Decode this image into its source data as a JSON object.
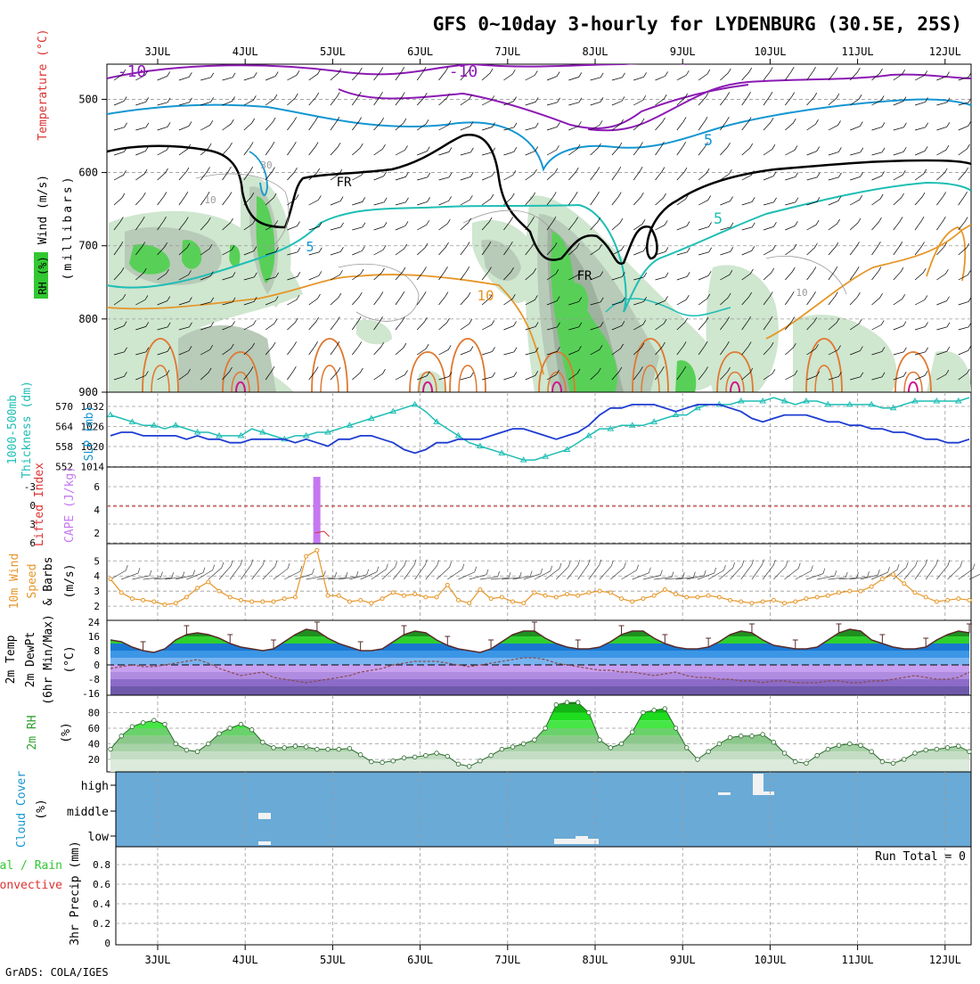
{
  "title": "GFS 0~10day 3-hourly for LYDENBURG (30.5E, 25S)",
  "credit": "GrADS: COLA/IGES",
  "dates": [
    "3JUL",
    "4JUL",
    "5JUL",
    "6JUL",
    "7JUL",
    "8JUL",
    "9JUL",
    "10JUL",
    "11JUL",
    "12JUL"
  ],
  "colors": {
    "purple": "#8c1ab4",
    "blue": "#1496d2",
    "cyan": "#1ebeb4",
    "orange": "#e69628",
    "red": "#dc3232",
    "green": "#32c832",
    "lav": "#c678f0",
    "cloud": "#6aaad6",
    "black": "#000000"
  },
  "chart_data": [
    {
      "id": "upper",
      "type": "contour",
      "ylabels": {
        "wind": "Wind (m/s)",
        "temp": "Temperature (°C)",
        "rh": "RH (%)",
        "mb": "(millibars)"
      },
      "yticks": [
        500,
        600,
        700,
        800,
        900
      ],
      "ylim": [
        450,
        900
      ],
      "contour_labels": [
        "-10",
        "-10",
        "5",
        "5",
        "5",
        "FR",
        "FR",
        "10",
        "10",
        "10",
        "30"
      ]
    },
    {
      "id": "slp",
      "type": "line",
      "ylabels": {
        "thick1": "1000-500mb",
        "thick2": "Thickness (dm)",
        "slp": "SLP (mb)"
      },
      "left_ticks": [
        "570",
        "564",
        "558",
        "552"
      ],
      "right_ticks": [
        "1032",
        "1026",
        "1020",
        "1014"
      ],
      "thickness_dm": [
        566,
        565,
        564,
        563,
        563,
        562,
        563,
        562,
        561,
        561,
        560,
        560,
        560,
        562,
        561,
        560,
        559,
        560,
        560,
        561,
        561,
        562,
        563,
        564,
        565,
        566,
        567,
        568,
        569,
        567,
        564,
        562,
        560,
        558,
        557,
        556,
        555,
        554,
        553,
        553,
        554,
        555,
        556,
        558,
        560,
        562,
        562,
        563,
        563,
        563,
        564,
        565,
        566,
        566,
        568,
        569,
        569,
        569,
        570,
        570,
        570,
        571,
        570,
        569,
        570,
        570,
        569,
        569,
        569,
        569,
        569,
        568,
        568,
        569,
        570,
        570,
        570,
        570,
        570,
        571
      ],
      "slp_mb": [
        1022,
        1023,
        1023,
        1022,
        1022,
        1022,
        1022,
        1021,
        1022,
        1021,
        1021,
        1020,
        1020,
        1021,
        1021,
        1021,
        1021,
        1020,
        1021,
        1020,
        1019,
        1021,
        1021,
        1022,
        1022,
        1021,
        1020,
        1018,
        1017,
        1018,
        1020,
        1020,
        1021,
        1021,
        1021,
        1022,
        1023,
        1024,
        1024,
        1023,
        1022,
        1021,
        1022,
        1023,
        1025,
        1028,
        1030,
        1030,
        1031,
        1031,
        1031,
        1030,
        1029,
        1030,
        1031,
        1031,
        1031,
        1030,
        1029,
        1027,
        1026,
        1027,
        1028,
        1028,
        1028,
        1027,
        1026,
        1026,
        1025,
        1025,
        1024,
        1024,
        1023,
        1023,
        1022,
        1021,
        1021,
        1020,
        1020,
        1021
      ]
    },
    {
      "id": "cape",
      "type": "bar",
      "ylabels": {
        "li": "Lifted Index",
        "cape": "CAPE (J/kg)"
      },
      "left_ticks": [
        "-3",
        "0",
        "3",
        "6"
      ],
      "right_ticks": [
        "6",
        "4",
        "2"
      ],
      "cape_index": 18,
      "cape_value": 7.4
    },
    {
      "id": "wind10m",
      "type": "line",
      "ylabels": {
        "a": "10m Wind",
        "b": "Speed",
        "c": "& Barbs",
        "unit": "(m/s)"
      },
      "yticks": [
        "5",
        "4",
        "3",
        "2"
      ],
      "speed_ms": [
        3.8,
        2.9,
        2.5,
        2.4,
        2.3,
        2.1,
        2.2,
        2.6,
        3.2,
        3.6,
        3.0,
        2.6,
        2.4,
        2.3,
        2.3,
        2.3,
        2.5,
        2.6,
        5.3,
        5.7,
        2.7,
        2.7,
        2.3,
        2.4,
        2.2,
        2.5,
        2.9,
        2.7,
        2.8,
        2.6,
        2.6,
        3.4,
        2.4,
        2.2,
        3.1,
        2.5,
        2.6,
        2.3,
        2.2,
        2.9,
        2.7,
        2.6,
        2.8,
        2.7,
        2.9,
        3.0,
        2.9,
        2.5,
        2.3,
        2.5,
        2.7,
        3.1,
        2.8,
        2.6,
        2.6,
        2.7,
        2.6,
        2.4,
        2.3,
        2.2,
        2.3,
        2.4,
        2.2,
        2.3,
        2.5,
        2.6,
        2.7,
        2.9,
        3.0,
        3.0,
        3.3,
        3.8,
        4.1,
        3.5,
        2.9,
        2.6,
        2.3,
        2.4,
        2.5,
        2.4
      ]
    },
    {
      "id": "temp2m",
      "type": "area",
      "ylabels": {
        "a": "2m Temp",
        "b": "2m DewPt",
        "c": "(6hr Min/Max)",
        "unit": "(°C)"
      },
      "yticks": [
        "24",
        "16",
        "8",
        "0",
        "-8",
        "-16"
      ],
      "temp_c": [
        14,
        13,
        10,
        8,
        7,
        9,
        14,
        17,
        18,
        17,
        15,
        12,
        10,
        9,
        8,
        9,
        13,
        17,
        20,
        19,
        15,
        12,
        10,
        8,
        8,
        9,
        13,
        17,
        19,
        18,
        14,
        11,
        9,
        8,
        7,
        9,
        13,
        17,
        19,
        19,
        15,
        12,
        10,
        9,
        9,
        10,
        13,
        17,
        19,
        19,
        15,
        12,
        10,
        9,
        9,
        10,
        13,
        17,
        19,
        18,
        14,
        11,
        10,
        9,
        9,
        10,
        14,
        18,
        20,
        19,
        14,
        12,
        10,
        9,
        9,
        10,
        14,
        17,
        19,
        18
      ],
      "dewpt_c": [
        -2,
        -1,
        0,
        -1,
        -1,
        0,
        1,
        2,
        3,
        1,
        -2,
        -4,
        -6,
        -5,
        -4,
        -7,
        -8,
        -9,
        -10,
        -9,
        -8,
        -7,
        -6,
        -4,
        -3,
        -2,
        0,
        1,
        2,
        2,
        2,
        1,
        0,
        -1,
        0,
        1,
        2,
        3,
        4,
        4,
        3,
        1,
        0,
        -1,
        -2,
        -3,
        -3,
        -4,
        -4,
        -5,
        -6,
        -5,
        -4,
        -6,
        -7,
        -7,
        -8,
        -8,
        -9,
        -9,
        -10,
        -9,
        -9,
        -10,
        -10,
        -10,
        -9,
        -9,
        -10,
        -10,
        -9,
        -9,
        -8,
        -7,
        -6,
        -7,
        -8,
        -8,
        -7,
        -4
      ]
    },
    {
      "id": "rh2m",
      "type": "area",
      "ylabels": {
        "a": "2m RH",
        "unit": "(%)"
      },
      "yticks": [
        "80",
        "60",
        "40",
        "20"
      ],
      "rh_pct": [
        33,
        50,
        62,
        67,
        70,
        65,
        40,
        32,
        30,
        40,
        53,
        60,
        65,
        58,
        42,
        35,
        35,
        37,
        36,
        33,
        33,
        33,
        34,
        26,
        17,
        16,
        18,
        22,
        23,
        25,
        28,
        24,
        14,
        11,
        18,
        25,
        33,
        36,
        40,
        45,
        60,
        90,
        93,
        93,
        80,
        45,
        35,
        40,
        55,
        80,
        83,
        85,
        60,
        35,
        20,
        30,
        40,
        48,
        50,
        50,
        52,
        42,
        28,
        17,
        15,
        25,
        33,
        38,
        40,
        38,
        30,
        17,
        15,
        20,
        28,
        32,
        33,
        35,
        37,
        30
      ]
    },
    {
      "id": "cloud",
      "type": "bar",
      "ylabels": {
        "a": "Cloud Cover",
        "unit": "(%)"
      },
      "levels": [
        "high",
        "middle",
        "low"
      ]
    },
    {
      "id": "precip",
      "type": "bar",
      "ylabels": {
        "a": "Total / Rain",
        "b": "Convective",
        "c": "3hr Precip (mm)"
      },
      "yticks": [
        "0.8",
        "0.6",
        "0.4",
        "0.2",
        "0"
      ],
      "run_total": "Run Total = 0",
      "values_mm": [
        0,
        0,
        0,
        0,
        0,
        0,
        0,
        0,
        0,
        0
      ]
    }
  ]
}
